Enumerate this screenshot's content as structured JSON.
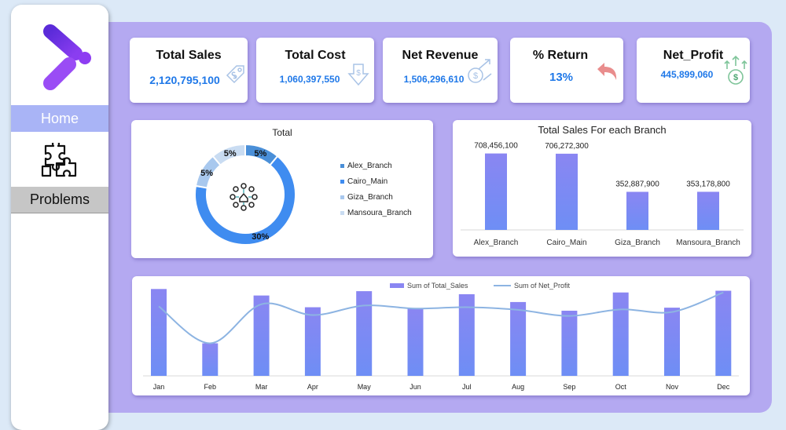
{
  "sidebar": {
    "nav": [
      {
        "label": "Home"
      },
      {
        "label": "Problems"
      }
    ],
    "icons": [
      "logo-icon",
      "puzzle-icon"
    ]
  },
  "kpis": [
    {
      "title": "Total Sales",
      "value": "2,120,795,100",
      "icon": "price-tag-icon"
    },
    {
      "title": "Total Cost",
      "value": "1,060,397,550",
      "icon": "dollar-down-arrow-icon"
    },
    {
      "title": "Net Revenue",
      "value": "1,506,296,610",
      "icon": "money-growth-icon"
    },
    {
      "title": "% Return",
      "value": "13%",
      "icon": "return-arrow-icon"
    },
    {
      "title": "Net_Profit",
      "value": "445,899,060",
      "icon": "dollar-coin-up-icon"
    }
  ],
  "colors": {
    "accent": "#1f78e8",
    "bar": "#8a86f2",
    "bar_bottom": "#6e8ef5",
    "line": "#8db4e2",
    "panel": "#b4a9f1"
  },
  "chart_data": [
    {
      "type": "pie",
      "title": "Total",
      "categories": [
        "Alex_Branch",
        "Cairo_Main",
        "Giza_Branch",
        "Mansoura_Branch"
      ],
      "values": [
        5,
        30,
        5,
        5
      ],
      "value_labels": [
        "5%",
        "30%",
        "5%",
        "5%"
      ],
      "colors": [
        "#4a8fd8",
        "#3f8cf0",
        "#a8c8ee",
        "#c9dcf2"
      ],
      "legend": "right"
    },
    {
      "type": "bar",
      "title": "Total Sales For each Branch",
      "categories": [
        "Alex_Branch",
        "Cairo_Main",
        "Giza_Branch",
        "Mansoura_Branch"
      ],
      "values": [
        708456100,
        706272300,
        352887900,
        353178800
      ],
      "value_labels": [
        "708,456,100",
        "706,272,300",
        "352,887,900",
        "353,178,800"
      ],
      "ylim": [
        0,
        800000000
      ],
      "grid": false
    },
    {
      "type": "bar",
      "title": "",
      "categories": [
        "Jan",
        "Feb",
        "Mar",
        "Apr",
        "May",
        "Jun",
        "Jul",
        "Aug",
        "Sep",
        "Oct",
        "Nov",
        "Dec"
      ],
      "series": [
        {
          "name": "Sum of Total_Sales",
          "type": "bar",
          "values": [
            200,
            75,
            185,
            158,
            195,
            156,
            188,
            170,
            150,
            192,
            157,
            196
          ]
        },
        {
          "name": "Sum of Net_Profit",
          "type": "line",
          "values": [
            160,
            75,
            165,
            140,
            162,
            155,
            158,
            152,
            138,
            153,
            147,
            192
          ]
        }
      ],
      "ylim": [
        0,
        215
      ],
      "legend": "top"
    }
  ]
}
